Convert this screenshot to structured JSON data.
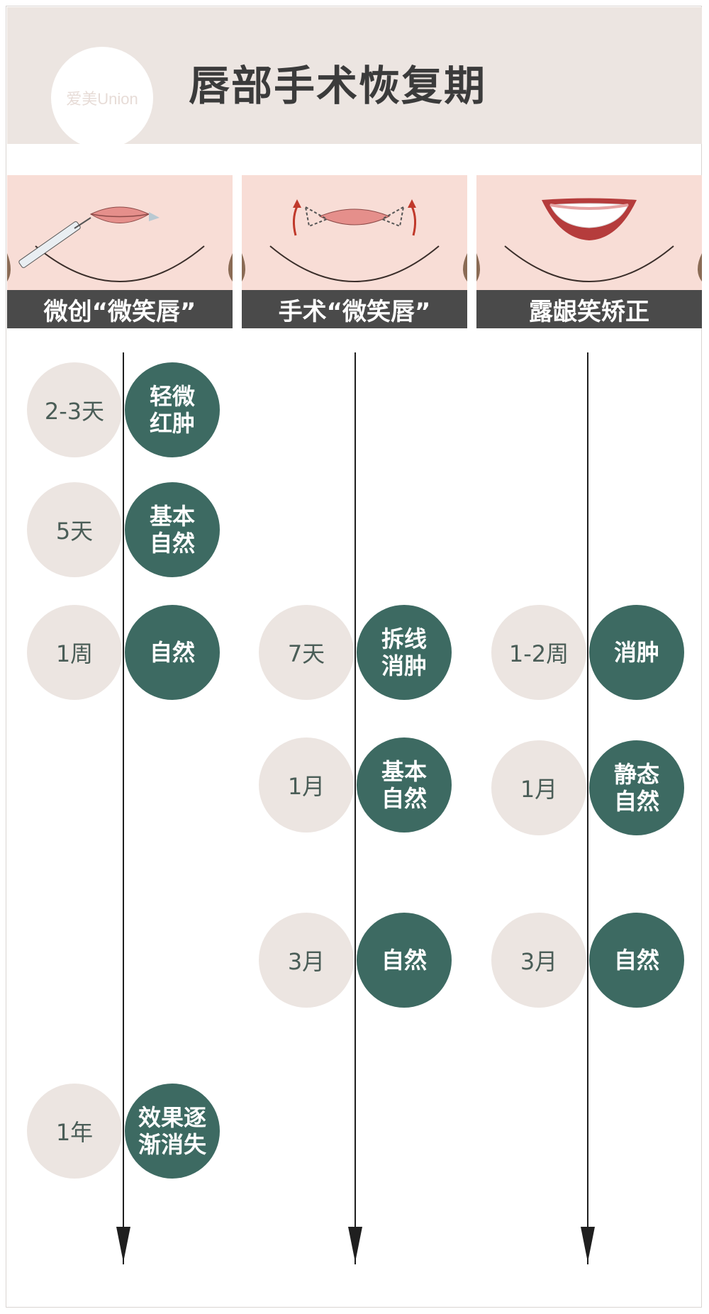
{
  "header": {
    "logo_text": "爱美Union",
    "title": "唇部手术恢复期"
  },
  "columns": [
    {
      "label": "微创“微笑唇”",
      "steps": [
        {
          "time": "2-3天",
          "state": "轻微\n红肿"
        },
        {
          "time": "5天",
          "state": "基本\n自然"
        },
        {
          "time": "1周",
          "state": "自然"
        },
        {
          "time": "1年",
          "state": "效果逐\n渐消失"
        }
      ]
    },
    {
      "label": "手术“微笑唇”",
      "steps": [
        {
          "time": "7天",
          "state": "拆线\n消肿"
        },
        {
          "time": "1月",
          "state": "基本\n自然"
        },
        {
          "time": "3月",
          "state": "自然"
        }
      ]
    },
    {
      "label": "露龈笑矫正",
      "steps": [
        {
          "time": "1-2周",
          "state": "消肿"
        },
        {
          "time": "1月",
          "state": "静态\n自然"
        },
        {
          "time": "3月",
          "state": "自然"
        }
      ]
    }
  ],
  "colors": {
    "header_bg": "#ece5e1",
    "time_circle": "#ece5e1",
    "state_circle": "#3d6a62",
    "label_bg": "#4a4a4a"
  }
}
